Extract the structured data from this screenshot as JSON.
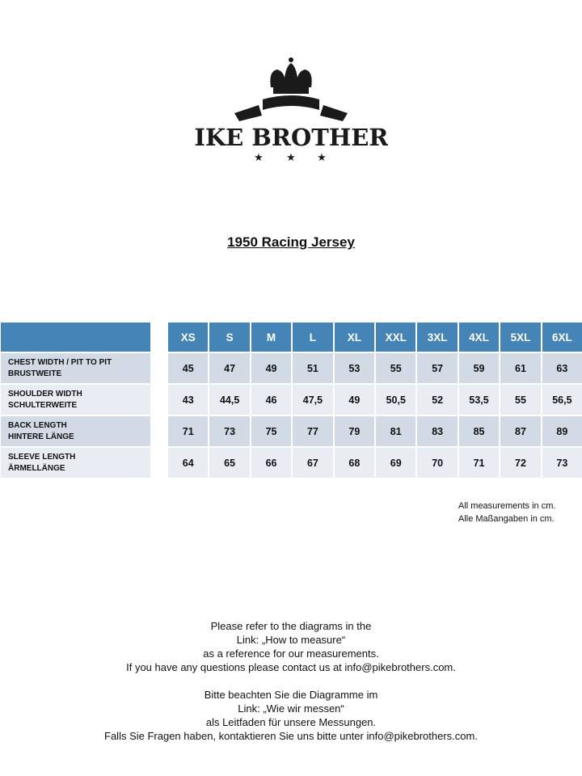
{
  "logo": {
    "brand": "PIKE BROTHERS",
    "icon": "crown-banner-stars"
  },
  "title": "1950 Racing Jersey",
  "table": {
    "sizes": [
      "XS",
      "S",
      "M",
      "L",
      "XL",
      "XXL",
      "3XL",
      "4XL",
      "5XL",
      "6XL"
    ],
    "rows": [
      {
        "label_en": "CHEST WIDTH / PIT TO PIT",
        "label_de": "BRUSTWEITE",
        "values": [
          "45",
          "47",
          "49",
          "51",
          "53",
          "55",
          "57",
          "59",
          "61",
          "63"
        ]
      },
      {
        "label_en": "SHOULDER WIDTH",
        "label_de": "SCHULTERWEITE",
        "values": [
          "43",
          "44,5",
          "46",
          "47,5",
          "49",
          "50,5",
          "52",
          "53,5",
          "55",
          "56,5"
        ]
      },
      {
        "label_en": "BACK LENGTH",
        "label_de": "HINTERE  LÄNGE",
        "values": [
          "71",
          "73",
          "75",
          "77",
          "79",
          "81",
          "83",
          "85",
          "87",
          "89"
        ]
      },
      {
        "label_en": "SLEEVE  LENGTH",
        "label_de": "ÄRMELLÄNGE",
        "values": [
          "64",
          "65",
          "66",
          "67",
          "68",
          "69",
          "70",
          "71",
          "72",
          "73"
        ]
      }
    ],
    "colors": {
      "header": "#4584b6",
      "row_odd": "#d1dae5",
      "row_even": "#e9edf3"
    }
  },
  "note": [
    "All measurements in cm.",
    "Alle Maßangaben  in cm."
  ],
  "footer": {
    "en": [
      "Please refer to the diagrams in the",
      "Link: „How to measure“",
      "as a reference for our measurements.",
      "If you have any questions please contact us at info@pikebrothers.com."
    ],
    "de": [
      "Bitte beachten Sie die Diagramme im",
      "Link: „Wie wir messen“",
      "als Leitfaden für unsere Messungen.",
      "Falls Sie Fragen haben, kontaktieren Sie uns bitte unter info@pikebrothers.com."
    ]
  }
}
